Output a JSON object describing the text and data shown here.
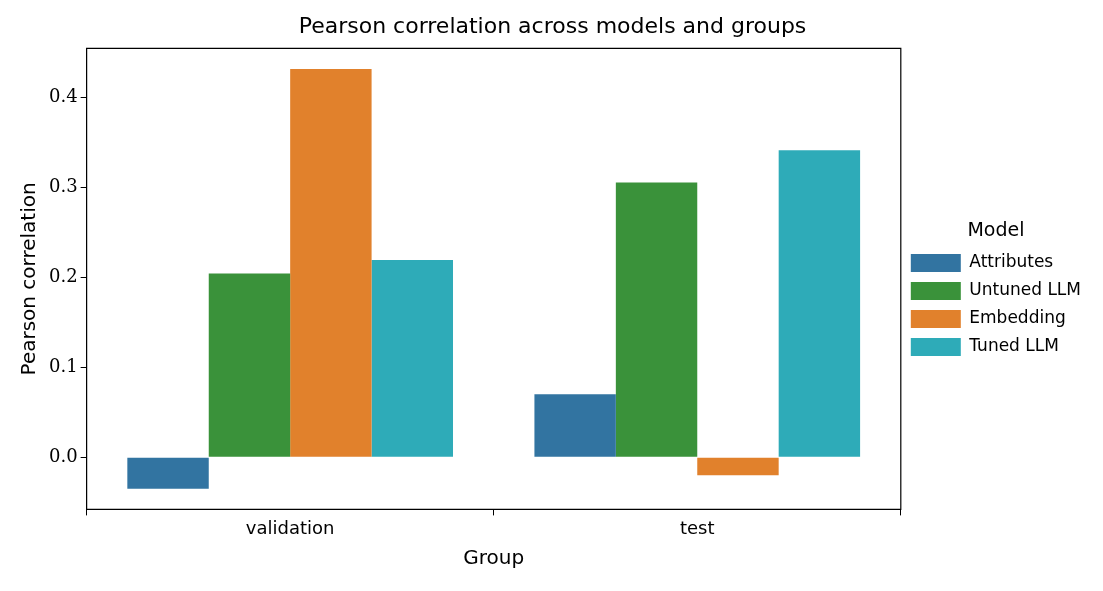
{
  "chart_data": {
    "type": "bar",
    "title": "Pearson correlation across models and groups",
    "xlabel": "Group",
    "ylabel": "Pearson correlation",
    "legend_title": "Model",
    "categories": [
      "validation",
      "test"
    ],
    "series": [
      {
        "name": "Attributes",
        "color": "#3274a1",
        "values": [
          -0.035,
          0.07
        ]
      },
      {
        "name": "Untuned LLM",
        "color": "#3a923a",
        "values": [
          0.204,
          0.305
        ]
      },
      {
        "name": "Embedding",
        "color": "#e1812c",
        "values": [
          0.431,
          -0.02
        ]
      },
      {
        "name": "Tuned LLM",
        "color": "#2eabb8",
        "values": [
          0.219,
          0.341
        ]
      }
    ],
    "ylim": [
      -0.058,
      0.454
    ],
    "yticks": [
      {
        "value": 0,
        "label": "0.0"
      },
      0.1,
      0.2,
      0.3,
      0.4
    ],
    "grid": false,
    "legend": "right"
  }
}
